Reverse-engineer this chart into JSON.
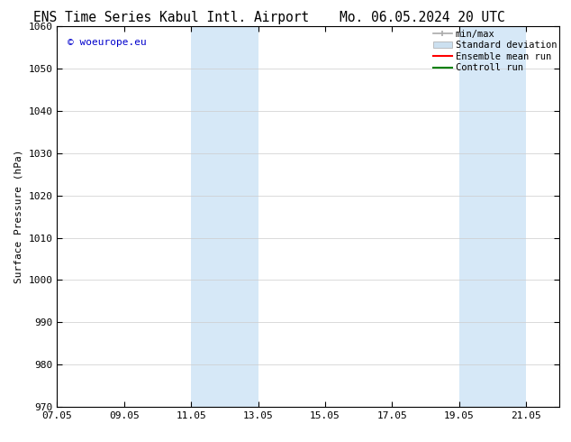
{
  "title_left": "ENS Time Series Kabul Intl. Airport",
  "title_right": "Mo. 06.05.2024 20 UTC",
  "ylabel": "Surface Pressure (hPa)",
  "ylim": [
    970,
    1060
  ],
  "yticks": [
    970,
    980,
    990,
    1000,
    1010,
    1020,
    1030,
    1040,
    1050,
    1060
  ],
  "xlim_start": 0,
  "xlim_end": 15,
  "xtick_labels": [
    "07.05",
    "09.05",
    "11.05",
    "13.05",
    "15.05",
    "17.05",
    "19.05",
    "21.05"
  ],
  "xtick_positions": [
    0,
    2,
    4,
    6,
    8,
    10,
    12,
    14
  ],
  "shaded_bands": [
    {
      "xstart": 4,
      "xend": 6
    },
    {
      "xstart": 12,
      "xend": 14
    }
  ],
  "shaded_color": "#d6e8f7",
  "watermark_text": "© woeurope.eu",
  "watermark_color": "#0000cc",
  "bg_color": "#ffffff",
  "grid_color": "#cccccc",
  "font_size": 8,
  "title_fontsize": 10.5,
  "legend_fontsize": 7.5,
  "minmax_color": "#aaaaaa",
  "std_color": "#cce0f0",
  "ens_color": "#ff0000",
  "ctrl_color": "#008000"
}
